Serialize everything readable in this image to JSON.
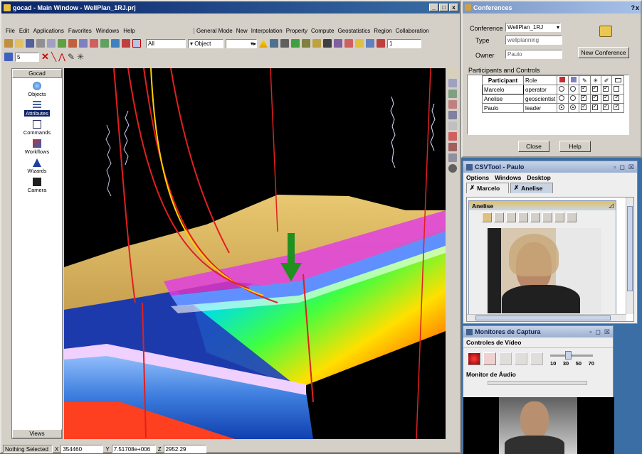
{
  "main_window": {
    "title": "gocad - Main Window - WellPlan_1RJ.prj",
    "title_buttons": [
      "_",
      "□",
      "x"
    ],
    "menu_left": [
      "File",
      "Edit",
      "Applications",
      "Favorites",
      "Windows",
      "Help"
    ],
    "menu_right": [
      "General Mode",
      "New",
      "Interpolation",
      "Property",
      "Compute",
      "Geostatistics",
      "Region",
      "Collaboration"
    ],
    "toolbar": {
      "all_select": "All",
      "object_label": "Object",
      "number_field": "1",
      "size_field": "5"
    },
    "sidebar": {
      "header": "Gocad",
      "items": [
        {
          "label": "Objects",
          "icon": "objects-icon"
        },
        {
          "label": "Attributes",
          "icon": "attributes-icon"
        },
        {
          "label": "Commands",
          "icon": "commands-icon"
        },
        {
          "label": "Workflows",
          "icon": "workflows-icon"
        },
        {
          "label": "Wizards",
          "icon": "wizards-icon"
        },
        {
          "label": "Camera",
          "icon": "camera-icon"
        }
      ],
      "footer": "Views"
    },
    "status": {
      "selection": "Nothing Selected",
      "x_label": "X",
      "x_value": "354460",
      "y_label": "Y",
      "y_value": "7.51708e+006",
      "z_label": "Z",
      "z_value": "2952.29"
    }
  },
  "conferences": {
    "title": "Conferences",
    "help": "?",
    "close": "x",
    "conference_label": "Conference",
    "conference_value": "WellPlan_1RJ",
    "type_label": "Type",
    "type_value": "wellplanning",
    "owner_label": "Owner",
    "owner_value": "Paulo",
    "new_conference_button": "New Conference",
    "participants_heading": "Participants and Controls",
    "table_headers": [
      "Participant",
      "Role"
    ],
    "participants": [
      {
        "name": "Marcelo",
        "role": "operator",
        "controls": [
          false,
          false,
          true,
          true,
          true,
          false
        ]
      },
      {
        "name": "Anelise",
        "role": "geoscientist",
        "controls": [
          false,
          false,
          true,
          true,
          true,
          true
        ]
      },
      {
        "name": "Paulo",
        "role": "leader",
        "controls": [
          true,
          true,
          true,
          true,
          true,
          true
        ]
      }
    ],
    "close_button": "Close",
    "help_button": "Help"
  },
  "csvtool": {
    "title": "CSVTool - Paulo",
    "menu": [
      "Options",
      "Windows",
      "Desktop"
    ],
    "tabs": [
      "Marcelo",
      "Anelise"
    ],
    "inner_title": "Anelise"
  },
  "monitores": {
    "title": "Monitores de Captura",
    "video_section": "Controles de Vídeo",
    "slider_ticks": [
      "10",
      "30",
      "50",
      "70"
    ],
    "slider_level_fraction": 0.4,
    "audio_section": "Monitor de Áudio"
  }
}
